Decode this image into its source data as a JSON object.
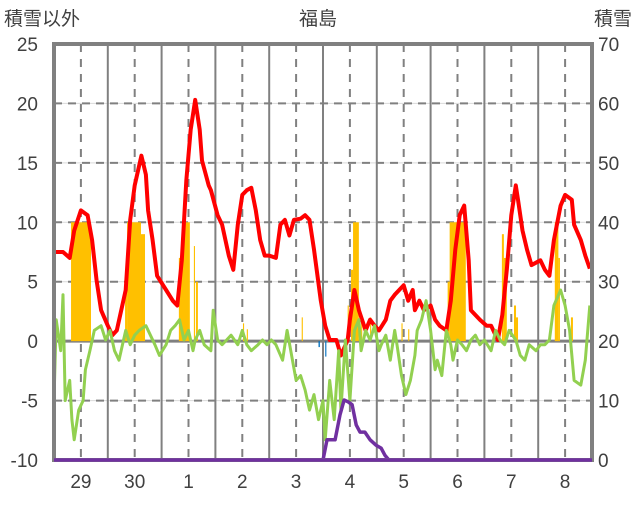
{
  "chart_data": {
    "type": "line",
    "title": "福島",
    "ylabel_left": "積雪以外",
    "ylabel_right": "積雪",
    "ylim_left": [
      -10,
      25
    ],
    "ylim_right": [
      0,
      70
    ],
    "yticks_left": [
      "25",
      "20",
      "15",
      "10",
      "5",
      "0",
      "-5",
      "-10"
    ],
    "yticks_right": [
      "70",
      "60",
      "50",
      "40",
      "30",
      "20",
      "10",
      "0"
    ],
    "x_unit": "hours since start of day 29",
    "xlim": [
      0,
      240
    ],
    "xtick_labels": [
      "29",
      "30",
      "1",
      "2",
      "3",
      "4",
      "5",
      "6",
      "7",
      "8"
    ],
    "grid": true,
    "colors": {
      "red": "#ff0000",
      "green": "#92d050",
      "orange": "#ffc000",
      "purple": "#7030a0",
      "blue": "#0070c0",
      "frame": "#808080"
    },
    "series": [
      {
        "name": "red",
        "axis": "left",
        "color": "#ff0000",
        "points": [
          [
            0,
            7.5
          ],
          [
            4,
            7.5
          ],
          [
            7,
            7.0
          ],
          [
            9,
            9.3
          ],
          [
            12,
            11.0
          ],
          [
            15,
            10.6
          ],
          [
            17,
            8.5
          ],
          [
            19,
            5.1
          ],
          [
            21,
            2.6
          ],
          [
            24,
            1.3
          ],
          [
            26,
            0.5
          ],
          [
            28,
            0.9
          ],
          [
            32,
            4.3
          ],
          [
            34,
            10.2
          ],
          [
            36,
            13.1
          ],
          [
            39,
            15.6
          ],
          [
            41,
            14.0
          ],
          [
            42,
            11.0
          ],
          [
            44,
            8.5
          ],
          [
            46,
            5.5
          ],
          [
            50,
            4.3
          ],
          [
            53,
            3.4
          ],
          [
            55,
            3.0
          ],
          [
            57,
            6.8
          ],
          [
            59,
            13.5
          ],
          [
            61,
            17.8
          ],
          [
            63,
            20.3
          ],
          [
            65,
            17.8
          ],
          [
            66,
            15.2
          ],
          [
            69,
            13.1
          ],
          [
            70,
            12.7
          ],
          [
            73,
            10.6
          ],
          [
            75,
            9.8
          ],
          [
            78,
            7.2
          ],
          [
            80,
            6.0
          ],
          [
            82,
            9.8
          ],
          [
            84,
            12.3
          ],
          [
            86,
            12.7
          ],
          [
            88,
            12.9
          ],
          [
            90,
            11.0
          ],
          [
            92,
            8.5
          ],
          [
            94,
            7.2
          ],
          [
            96,
            7.2
          ],
          [
            99,
            7.0
          ],
          [
            101,
            9.8
          ],
          [
            103,
            10.2
          ],
          [
            105,
            8.9
          ],
          [
            107,
            10.2
          ],
          [
            110,
            10.3
          ],
          [
            112,
            10.6
          ],
          [
            114,
            10.2
          ],
          [
            116,
            7.7
          ],
          [
            119,
            3.4
          ],
          [
            121,
            1.3
          ],
          [
            123,
            0.1
          ],
          [
            126,
            0.1
          ],
          [
            128,
            -1.2
          ],
          [
            131,
            0.1
          ],
          [
            132,
            1.8
          ],
          [
            134,
            4.3
          ],
          [
            136,
            2.6
          ],
          [
            139,
            0.9
          ],
          [
            141,
            1.8
          ],
          [
            143,
            1.3
          ],
          [
            145,
            0.9
          ],
          [
            148,
            1.8
          ],
          [
            150,
            3.4
          ],
          [
            152,
            3.9
          ],
          [
            154,
            4.3
          ],
          [
            156,
            4.7
          ],
          [
            158,
            3.4
          ],
          [
            160,
            4.3
          ],
          [
            161,
            2.6
          ],
          [
            163,
            3.4
          ],
          [
            165,
            2.6
          ],
          [
            168,
            3.0
          ],
          [
            170,
            1.8
          ],
          [
            172,
            1.3
          ],
          [
            175,
            0.9
          ],
          [
            177,
            3.4
          ],
          [
            179,
            7.7
          ],
          [
            181,
            10.6
          ],
          [
            183,
            11.4
          ],
          [
            185,
            6.8
          ],
          [
            186,
            2.6
          ],
          [
            188,
            2.2
          ],
          [
            190,
            1.8
          ],
          [
            193,
            1.3
          ],
          [
            195,
            1.3
          ],
          [
            198,
            0.1
          ],
          [
            200,
            2.2
          ],
          [
            202,
            6.0
          ],
          [
            204,
            10.6
          ],
          [
            206,
            13.1
          ],
          [
            207,
            11.9
          ],
          [
            209,
            9.3
          ],
          [
            211,
            7.7
          ],
          [
            213,
            6.4
          ],
          [
            215,
            6.6
          ],
          [
            217,
            6.8
          ],
          [
            219,
            6.0
          ],
          [
            221,
            5.5
          ],
          [
            223,
            8.5
          ],
          [
            226,
            11.4
          ],
          [
            228,
            12.3
          ],
          [
            231,
            11.9
          ],
          [
            232,
            9.8
          ],
          [
            235,
            8.5
          ],
          [
            237,
            7.2
          ],
          [
            239,
            6.1
          ]
        ]
      },
      {
        "name": "green",
        "axis": "left",
        "color": "#92d050",
        "points": [
          [
            0,
            -5.0
          ],
          [
            1,
            1.8
          ],
          [
            3,
            -0.8
          ],
          [
            4,
            3.9
          ],
          [
            5,
            -5.0
          ],
          [
            7,
            -3.3
          ],
          [
            8,
            -6.6
          ],
          [
            9,
            -8.3
          ],
          [
            11,
            -5.8
          ],
          [
            13,
            -5.0
          ],
          [
            14,
            -2.4
          ],
          [
            16,
            -0.8
          ],
          [
            18,
            0.9
          ],
          [
            21,
            1.3
          ],
          [
            23,
            0.1
          ],
          [
            25,
            0.9
          ],
          [
            27,
            -0.8
          ],
          [
            29,
            -1.6
          ],
          [
            32,
            0.9
          ],
          [
            34,
            -0.3
          ],
          [
            36,
            0.5
          ],
          [
            38,
            0.9
          ],
          [
            41,
            1.3
          ],
          [
            43,
            0.5
          ],
          [
            45,
            -0.3
          ],
          [
            47,
            -1.2
          ],
          [
            50,
            -0.3
          ],
          [
            52,
            0.9
          ],
          [
            54,
            1.3
          ],
          [
            56,
            1.8
          ],
          [
            58,
            0.1
          ],
          [
            60,
            0.9
          ],
          [
            62,
            -0.8
          ],
          [
            63,
            0.1
          ],
          [
            65,
            0.9
          ],
          [
            67,
            -0.3
          ],
          [
            70,
            -0.8
          ],
          [
            71,
            2.6
          ],
          [
            73,
            0.1
          ],
          [
            75,
            -0.3
          ],
          [
            77,
            0.1
          ],
          [
            79,
            0.5
          ],
          [
            82,
            -0.3
          ],
          [
            84,
            0.9
          ],
          [
            86,
            -0.3
          ],
          [
            88,
            -0.8
          ],
          [
            91,
            -0.3
          ],
          [
            93,
            0.1
          ],
          [
            95,
            -0.3
          ],
          [
            97,
            0.1
          ],
          [
            99,
            -0.3
          ],
          [
            102,
            -1.6
          ],
          [
            104,
            0.9
          ],
          [
            106,
            -1.2
          ],
          [
            108,
            -3.3
          ],
          [
            110,
            -2.9
          ],
          [
            112,
            -4.1
          ],
          [
            114,
            -5.8
          ],
          [
            116,
            -4.5
          ],
          [
            118,
            -6.6
          ],
          [
            120,
            -5.0
          ],
          [
            121,
            -8.3
          ],
          [
            123,
            -3.3
          ],
          [
            125,
            -6.6
          ],
          [
            127,
            -0.8
          ],
          [
            128,
            -5.8
          ],
          [
            130,
            0.1
          ],
          [
            132,
            -5.0
          ],
          [
            134,
            0.9
          ],
          [
            136,
            1.8
          ],
          [
            137,
            -0.8
          ],
          [
            139,
            0.9
          ],
          [
            141,
            0.1
          ],
          [
            143,
            1.3
          ],
          [
            145,
            -0.8
          ],
          [
            146,
            -0.3
          ],
          [
            148,
            0.5
          ],
          [
            150,
            -1.6
          ],
          [
            152,
            0.9
          ],
          [
            153,
            -0.3
          ],
          [
            155,
            -2.9
          ],
          [
            157,
            -4.5
          ],
          [
            159,
            -3.3
          ],
          [
            161,
            -1.2
          ],
          [
            162,
            0.9
          ],
          [
            164,
            1.8
          ],
          [
            166,
            3.4
          ],
          [
            168,
            0.9
          ],
          [
            170,
            -2.4
          ],
          [
            171,
            -1.6
          ],
          [
            173,
            -2.9
          ],
          [
            175,
            0.9
          ],
          [
            177,
            -0.3
          ],
          [
            178,
            -1.6
          ],
          [
            180,
            0.1
          ],
          [
            182,
            -0.3
          ],
          [
            184,
            -0.8
          ],
          [
            186,
            0.1
          ],
          [
            188,
            0.5
          ],
          [
            190,
            -0.3
          ],
          [
            192,
            0.1
          ],
          [
            195,
            -0.8
          ],
          [
            197,
            0.9
          ],
          [
            199,
            0.1
          ],
          [
            201,
            -0.3
          ],
          [
            203,
            0.9
          ],
          [
            206,
            0.1
          ],
          [
            208,
            -1.2
          ],
          [
            210,
            -1.6
          ],
          [
            212,
            -0.3
          ],
          [
            215,
            -0.8
          ],
          [
            217,
            -0.3
          ],
          [
            219,
            -0.3
          ],
          [
            221,
            0.1
          ],
          [
            223,
            3.0
          ],
          [
            226,
            4.3
          ],
          [
            228,
            3.0
          ],
          [
            230,
            0.9
          ],
          [
            232,
            -3.3
          ],
          [
            235,
            -3.7
          ],
          [
            237,
            -1.6
          ],
          [
            239,
            3.0
          ]
        ]
      },
      {
        "name": "purple",
        "axis": "right",
        "color": "#7030a0",
        "points": [
          [
            0,
            0
          ],
          [
            120,
            0
          ],
          [
            121.8,
            3.4
          ],
          [
            125.4,
            3.4
          ],
          [
            127.6,
            7.6
          ],
          [
            129.4,
            10.1
          ],
          [
            131.2,
            9.8
          ],
          [
            133,
            9.3
          ],
          [
            134.8,
            5.9
          ],
          [
            136.5,
            4.7
          ],
          [
            138.7,
            4.7
          ],
          [
            141,
            3.4
          ],
          [
            143.6,
            2.5
          ],
          [
            145.9,
            2.0
          ],
          [
            147.6,
            0.8
          ],
          [
            149.4,
            0
          ],
          [
            240,
            0
          ]
        ]
      }
    ],
    "bars": [
      {
        "name": "orange",
        "axis": "left",
        "color": "#ffc000",
        "items": [
          [
            7.6,
            16.5,
            10
          ],
          [
            31.7,
            32.6,
            6
          ],
          [
            32.6,
            38.8,
            10
          ],
          [
            38.8,
            40.6,
            9
          ],
          [
            55.7,
            57.1,
            7
          ],
          [
            57.1,
            60.6,
            10
          ],
          [
            62.4,
            62.9,
            8
          ],
          [
            63.3,
            64.2,
            5
          ],
          [
            84.3,
            84.8,
            1.5
          ],
          [
            86,
            86.5,
            1
          ],
          [
            110.5,
            111,
            2
          ],
          [
            131,
            131.5,
            3
          ],
          [
            132.5,
            133.4,
            6
          ],
          [
            133.4,
            136,
            10
          ],
          [
            137,
            137.5,
            2
          ],
          [
            141,
            141.5,
            2
          ],
          [
            155,
            155.5,
            1.5
          ],
          [
            158,
            158.5,
            1
          ],
          [
            175.6,
            176.5,
            5
          ],
          [
            176.5,
            183.7,
            10
          ],
          [
            199.8,
            200.7,
            9
          ],
          [
            200.7,
            202,
            7
          ],
          [
            205.2,
            206.1,
            3
          ],
          [
            206.1,
            207,
            2
          ],
          [
            223.4,
            225,
            10
          ],
          [
            225,
            225.7,
            7
          ],
          [
            230.6,
            231.5,
            2
          ]
        ]
      },
      {
        "name": "blue",
        "axis": "left",
        "color": "#0070c0",
        "items": [
          [
            118,
            118.6,
            -0.5
          ],
          [
            121,
            121.5,
            -1.3
          ],
          [
            126,
            126.6,
            -0.5
          ],
          [
            148.5,
            149.1,
            -0.5
          ]
        ]
      }
    ]
  }
}
